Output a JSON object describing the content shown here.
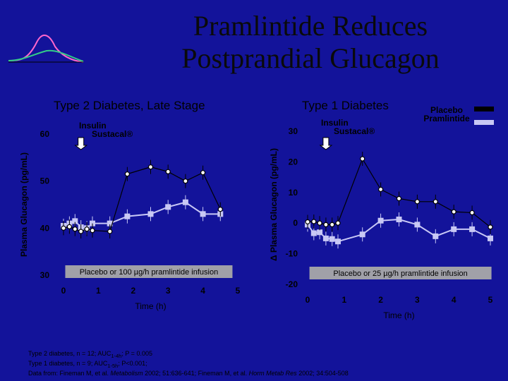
{
  "title_line1": "Pramlintide Reduces",
  "title_line2": "Postprandial Glucagon",
  "legend": {
    "placebo": "Placebo",
    "pramlintide": "Pramlintide",
    "placebo_color": "#000000",
    "pramlintide_color": "#c8c8f5"
  },
  "chart_data": [
    {
      "type": "line",
      "title": "Type 2 Diabetes, Late Stage",
      "ylabel": "Plasma Glucagon (pg/mL)",
      "xlabel": "Time (h)",
      "xlim": [
        0,
        5
      ],
      "ylim": [
        30,
        60
      ],
      "xticks": [
        "0",
        "1",
        "2",
        "3",
        "4",
        "5"
      ],
      "yticks": [
        "30",
        "40",
        "50",
        "60"
      ],
      "annotation_meal": "Insulin",
      "annotation_meal2": "Sustacal®",
      "annotation_meal_x": 0.5,
      "infusion_label": "Placebo or 100 µg/h pramlintide infusion",
      "series": [
        {
          "name": "Placebo",
          "x": [
            0,
            0.17,
            0.33,
            0.5,
            0.67,
            0.83,
            1.33,
            1.83,
            2.5,
            3.0,
            3.5,
            4.0,
            4.5
          ],
          "y": [
            40.0,
            40.3,
            39.8,
            39.3,
            39.8,
            39.5,
            39.3,
            51.5,
            53.0,
            52.0,
            50.0,
            51.8,
            44.0
          ]
        },
        {
          "name": "Pramlintide",
          "x": [
            0,
            0.17,
            0.33,
            0.5,
            0.67,
            0.83,
            1.33,
            1.83,
            2.5,
            3.0,
            3.5,
            4.0,
            4.5
          ],
          "y": [
            40.5,
            41.0,
            41.5,
            40.2,
            40.0,
            41.0,
            41.0,
            42.5,
            43.0,
            44.5,
            45.5,
            43.0,
            43.0
          ]
        }
      ]
    },
    {
      "type": "line",
      "title": "Type 1 Diabetes",
      "ylabel": "Δ Plasma Glucagon (pg/mL)",
      "xlabel": "Time (h)",
      "xlim": [
        0,
        5
      ],
      "ylim": [
        -20,
        30
      ],
      "xticks": [
        "0",
        "1",
        "2",
        "3",
        "4",
        "5"
      ],
      "yticks": [
        "-20",
        "-10",
        "0",
        "10",
        "20",
        "30"
      ],
      "annotation_meal": "Insulin",
      "annotation_meal2": "Sustacal®",
      "annotation_meal_x": 0.5,
      "infusion_label": "Placebo or 25 µg/h pramlintide infusion",
      "series": [
        {
          "name": "Placebo",
          "x": [
            0,
            0.17,
            0.33,
            0.5,
            0.67,
            0.83,
            1.5,
            2.0,
            2.5,
            3.0,
            3.5,
            4.0,
            4.5,
            5.0
          ],
          "y": [
            0.4,
            0.5,
            0.0,
            -0.5,
            -0.5,
            0.0,
            21.0,
            11.0,
            8.0,
            7.0,
            7.0,
            3.7,
            3.4,
            -1.3
          ]
        },
        {
          "name": "Pramlintide",
          "x": [
            0,
            0.17,
            0.33,
            0.5,
            0.67,
            0.83,
            1.5,
            2.0,
            2.5,
            3.0,
            3.5,
            4.0,
            4.5,
            5.0
          ],
          "y": [
            -0.5,
            -3.3,
            -3.0,
            -5.0,
            -5.2,
            -6.0,
            -3.7,
            0.8,
            1.2,
            -0.5,
            -4.3,
            -2.0,
            -2.0,
            -5.0
          ]
        }
      ]
    }
  ],
  "footnote_line1_a": "Type 2 diabetes, n = 12; AUC",
  "footnote_line1_sub": "1-4h",
  "footnote_line1_b": "; P = 0.005",
  "footnote_line2_a": "Type 1 diabetes, n = 9; AUC",
  "footnote_line2_sub": "1-5h",
  "footnote_line2_b": "; P<0.001;",
  "footnote_line3_a": "Data from: Fineman M, et al. ",
  "footnote_line3_j1": "Metabolism",
  "footnote_line3_b": " 2002; 51:636-641; Fineman M, et al. ",
  "footnote_line3_j2": "Horm Metab Res",
  "footnote_line3_c": " 2002; 34:504-508"
}
